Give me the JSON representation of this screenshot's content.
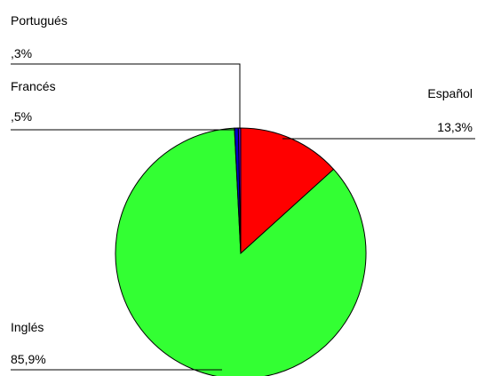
{
  "chart_data": {
    "type": "pie",
    "title": "",
    "slices": [
      {
        "label": "Español",
        "value_label": "13,3%",
        "value": 13.3,
        "color": "#ff0000"
      },
      {
        "label": "Inglés",
        "value_label": "85,9%",
        "value": 85.9,
        "color": "#33ff33"
      },
      {
        "label": "Francés",
        "value_label": ",5%",
        "value": 0.5,
        "color": "#0000cc"
      },
      {
        "label": "Portugués",
        "value_label": ",3%",
        "value": 0.3,
        "color": "#6600cc"
      }
    ],
    "legend": "none"
  }
}
